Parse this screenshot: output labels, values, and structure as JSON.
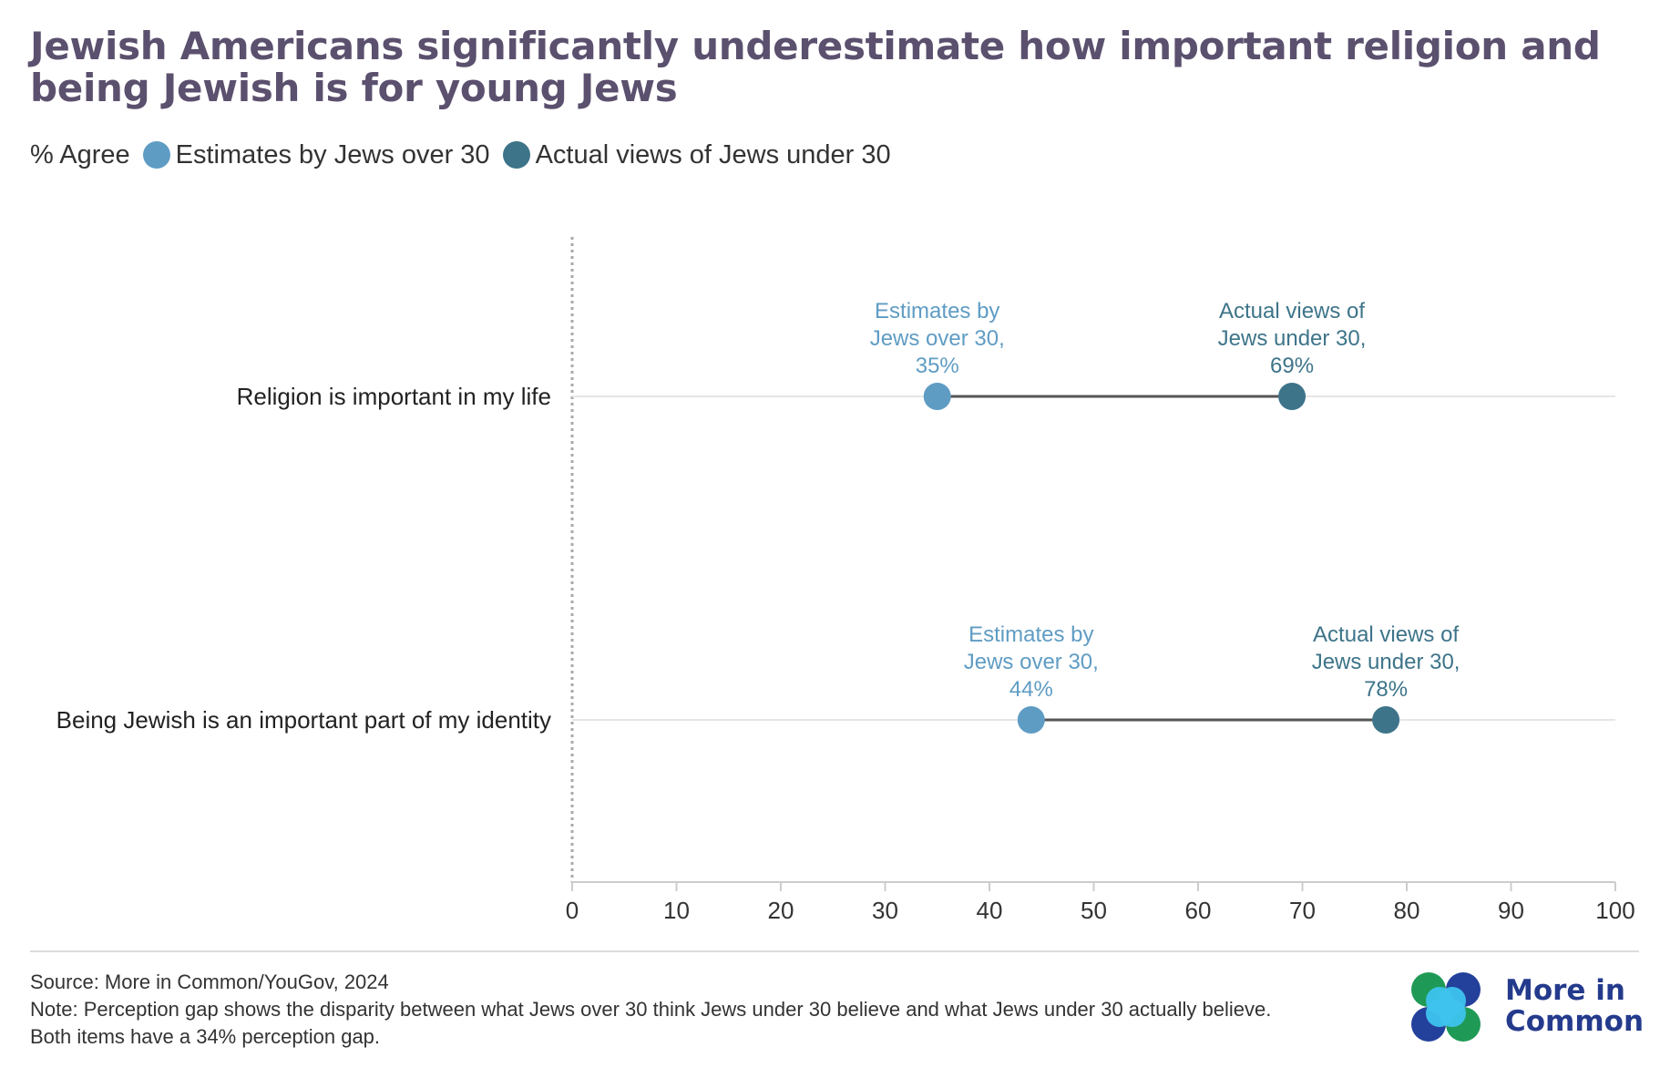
{
  "title": "Jewish Americans significantly underestimate how important religion and being Jewish is for young Jews",
  "legend": {
    "prefix": "% Agree",
    "items": [
      {
        "label": "Estimates by Jews over 30",
        "color": "#5f9cc4"
      },
      {
        "label": "Actual views of Jews under 30",
        "color": "#3d7489"
      }
    ]
  },
  "chart_data": {
    "type": "dumbbell",
    "xlim": [
      0,
      100
    ],
    "xticks": [
      0,
      10,
      20,
      30,
      40,
      50,
      60,
      70,
      80,
      90,
      100
    ],
    "categories": [
      "Religion is important in my life",
      "Being Jewish is an important part of my identity"
    ],
    "series": [
      {
        "name": "Estimates by Jews over 30",
        "color": "#5f9cc4",
        "values": [
          35,
          44
        ],
        "labels": [
          [
            "Estimates by",
            "Jews over 30,",
            "35%"
          ],
          [
            "Estimates by",
            "Jews over 30,",
            "44%"
          ]
        ]
      },
      {
        "name": "Actual views of Jews under 30",
        "color": "#3d7489",
        "values": [
          69,
          78
        ],
        "labels": [
          [
            "Actual views of",
            "Jews under 30,",
            "69%"
          ],
          [
            "Actual views of",
            "Jews under 30,",
            "78%"
          ]
        ]
      }
    ],
    "connector_color": "#555555",
    "grid": false
  },
  "footer": {
    "source": "Source: More in Common/YouGov, 2024",
    "note_line1": "Note: Perception gap shows the disparity between what Jews over 30 think Jews under 30 believe and what Jews under 30 actually believe.",
    "note_line2": "Both items have a 34% perception gap."
  },
  "logo": {
    "line1": "More in",
    "line2": "Common",
    "colors": [
      "#1f9a56",
      "#23409b",
      "#3ec3ee"
    ]
  }
}
